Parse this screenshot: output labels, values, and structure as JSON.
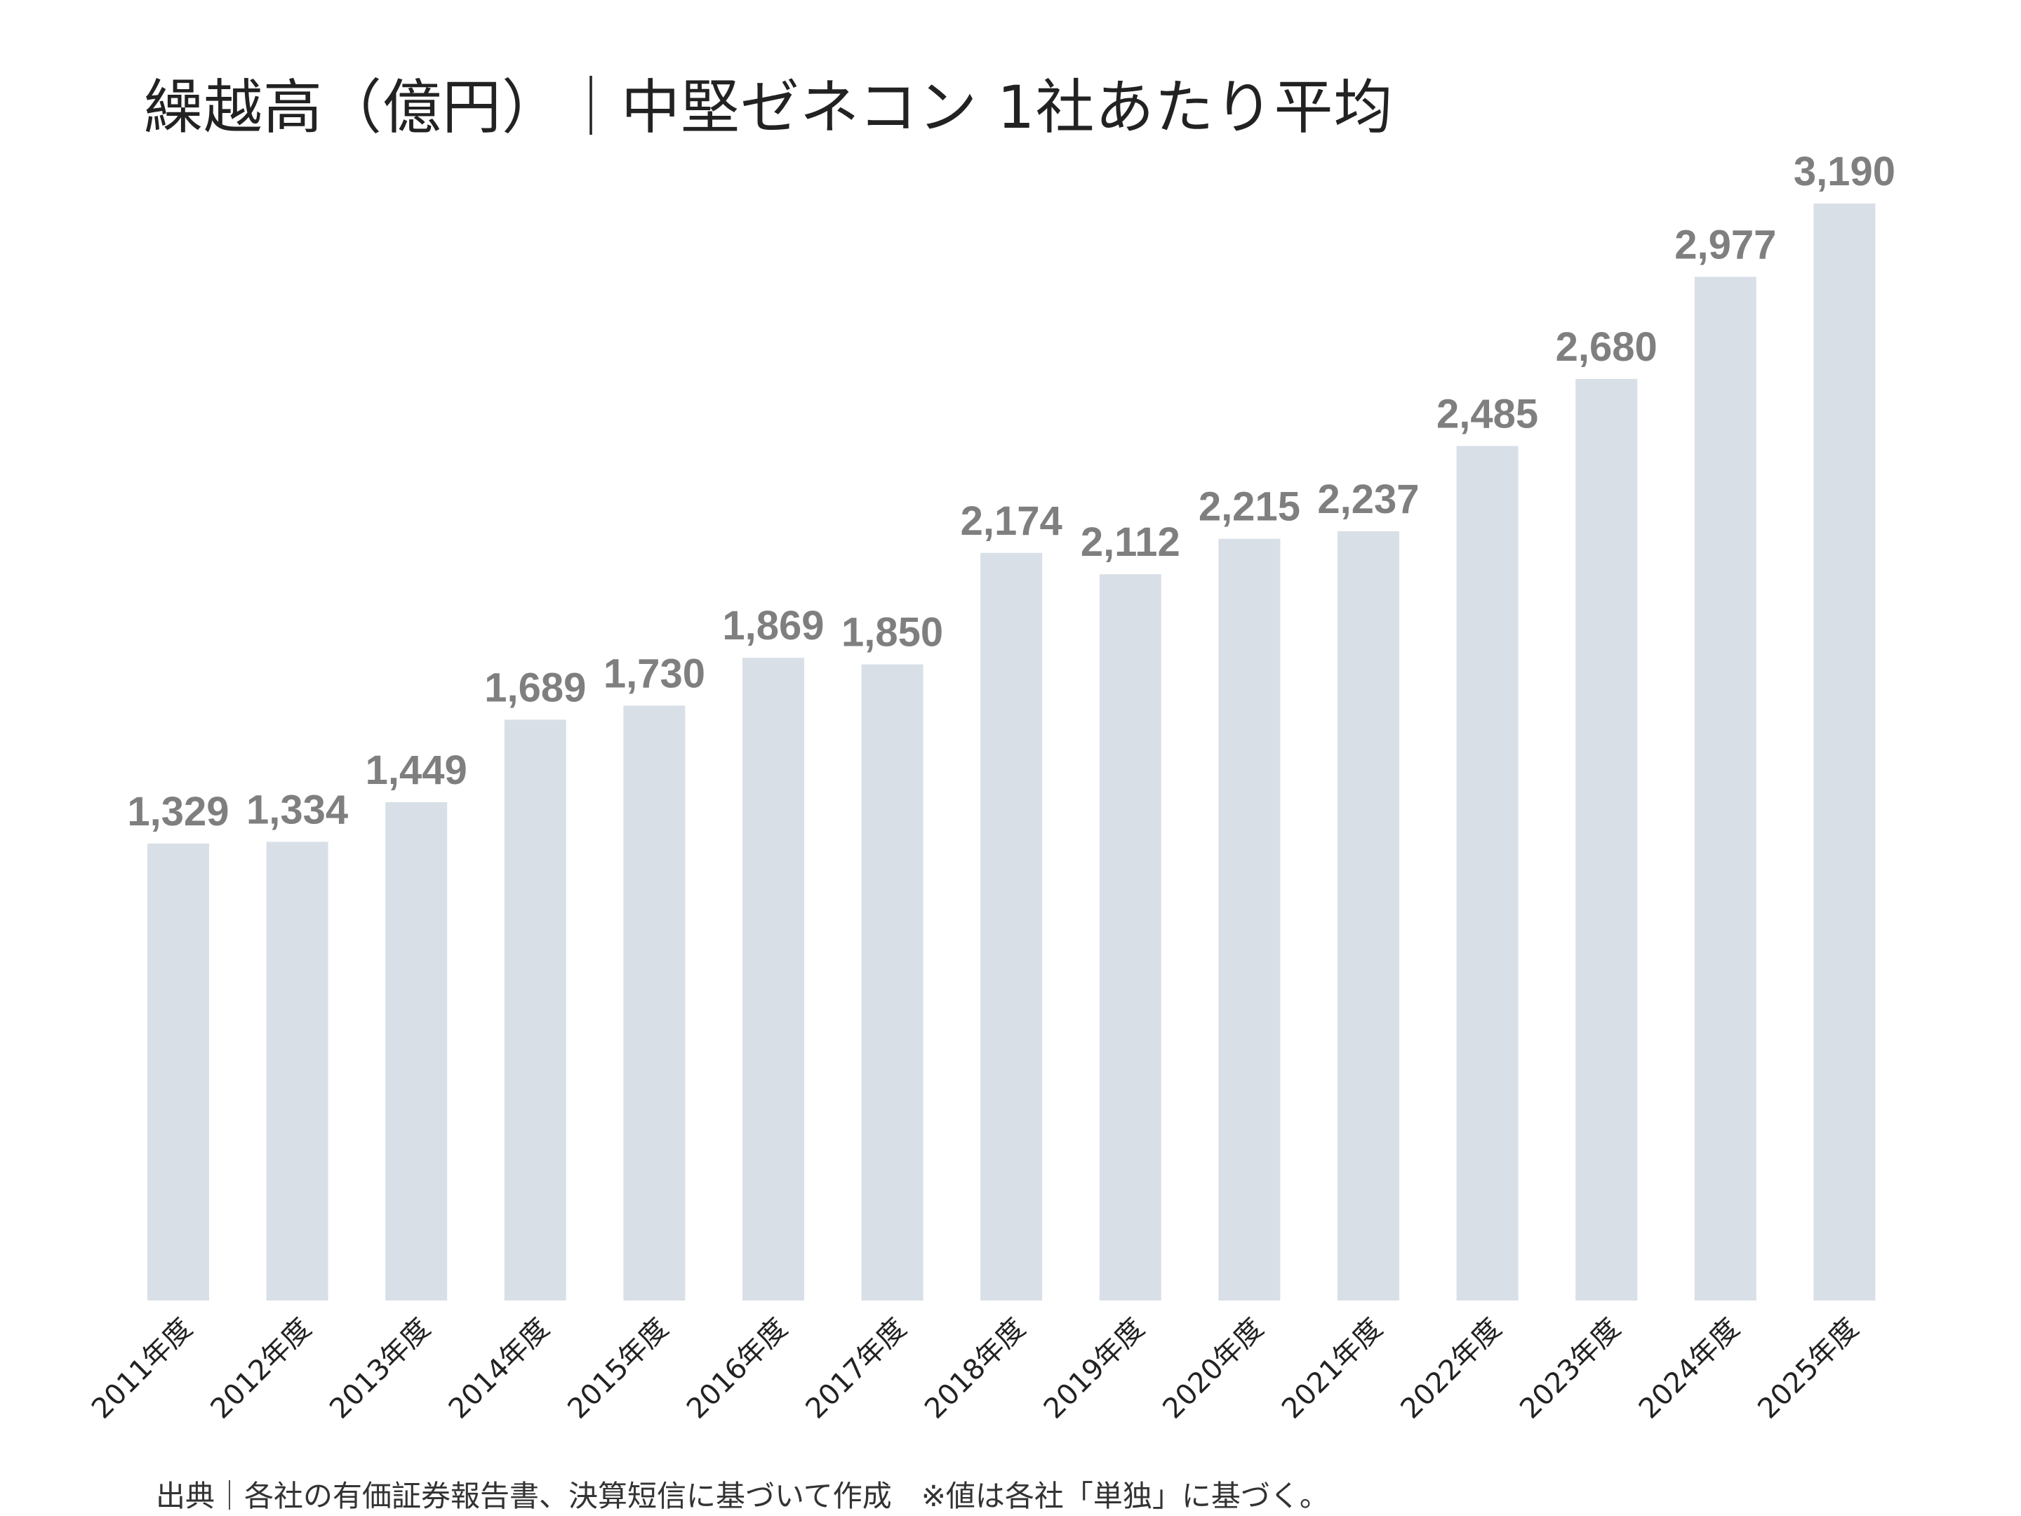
{
  "chart_data": {
    "type": "bar",
    "title": "繰越高（億円）｜中堅ゼネコン 1社あたり平均",
    "categories": [
      "2011年度",
      "2012年度",
      "2013年度",
      "2014年度",
      "2015年度",
      "2016年度",
      "2017年度",
      "2018年度",
      "2019年度",
      "2020年度",
      "2021年度",
      "2022年度",
      "2023年度",
      "2024年度",
      "2025年度"
    ],
    "values": [
      1329,
      1334,
      1449,
      1689,
      1730,
      1869,
      1850,
      2174,
      2112,
      2215,
      2237,
      2485,
      2680,
      2977,
      3190
    ],
    "value_labels": [
      "1,329",
      "1,334",
      "1,449",
      "1,689",
      "1,730",
      "1,869",
      "1,850",
      "2,174",
      "2,112",
      "2,215",
      "2,237",
      "2,485",
      "2,680",
      "2,977",
      "3,190"
    ],
    "ylim": [
      0,
      3190
    ],
    "grid": false,
    "legend": "none",
    "bar_color": "#d9dfe7",
    "label_color": "#7f7f7f"
  },
  "footer": {
    "source": "出典｜各社の有価証券報告書、決算短信に基づいて作成　※値は各社「単独」に基づく。"
  }
}
